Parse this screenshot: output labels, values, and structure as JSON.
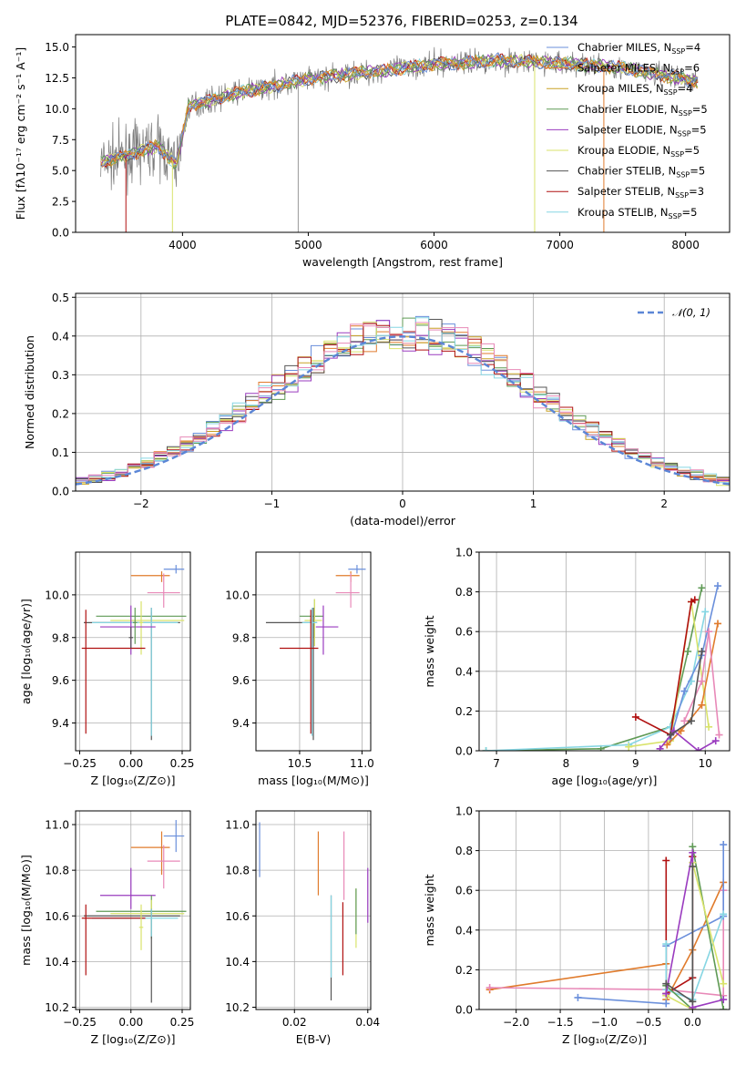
{
  "colors": {
    "Chabrier MILES": "#6a8fdb",
    "Salpeter MILES": "#e07b2c",
    "Kroupa MILES": "#c9a227",
    "Chabrier ELODIE": "#5f9a55",
    "Salpeter ELODIE": "#9a3bbf",
    "Kroupa ELODIE": "#d9e36b",
    "Chabrier STELIB": "#555555",
    "Salpeter STELIB": "#b01010",
    "Kroupa STELIB": "#86d6e3",
    "pink": "#e889b8",
    "gauss": "#5b86d6"
  },
  "chart_data": [
    {
      "id": "spectrum",
      "type": "line",
      "title": "PLATE=0842, MJD=52376, FIBERID=0253, z=0.134",
      "xlabel": "wavelength [Angstrom, rest frame]",
      "ylabel": "Flux [fλ10⁻¹⁷ erg cm⁻² s⁻¹ A⁻¹]",
      "xlim": [
        3150,
        8350
      ],
      "ylim": [
        0,
        16
      ],
      "xticks": [
        4000,
        5000,
        6000,
        7000,
        8000
      ],
      "yticks": [
        0.0,
        2.5,
        5.0,
        7.5,
        10.0,
        12.5,
        15.0
      ],
      "grid": false,
      "legend_loc": "right",
      "data_range": [
        3350,
        8100
      ],
      "continuum_anchors": [
        [
          3350,
          5.6
        ],
        [
          3600,
          6.4
        ],
        [
          3800,
          7.0
        ],
        [
          3950,
          5.5
        ],
        [
          4050,
          10.2
        ],
        [
          4400,
          11.2
        ],
        [
          5000,
          12.4
        ],
        [
          5600,
          13.1
        ],
        [
          6000,
          13.6
        ],
        [
          6500,
          13.9
        ],
        [
          7000,
          13.7
        ],
        [
          7500,
          13.3
        ],
        [
          8100,
          12.2
        ]
      ],
      "legend": [
        {
          "series": "Chabrier MILES",
          "label": "Chabrier MILES, N",
          "sub": "SSP",
          "suffix": "=4"
        },
        {
          "series": "Salpeter MILES",
          "label": "Salpeter MILES, N",
          "sub": "SSP",
          "suffix": "=6"
        },
        {
          "series": "Kroupa MILES",
          "label": "Kroupa MILES, N",
          "sub": "SSP",
          "suffix": "=4"
        },
        {
          "series": "Chabrier ELODIE",
          "label": "Chabrier ELODIE, N",
          "sub": "SSP",
          "suffix": "=5"
        },
        {
          "series": "Salpeter ELODIE",
          "label": "Salpeter ELODIE, N",
          "sub": "SSP",
          "suffix": "=5"
        },
        {
          "series": "Kroupa ELODIE",
          "label": "Kroupa ELODIE, N",
          "sub": "SSP",
          "suffix": "=5"
        },
        {
          "series": "Chabrier STELIB",
          "label": "Chabrier STELIB, N",
          "sub": "SSP",
          "suffix": "=5"
        },
        {
          "series": "Salpeter STELIB",
          "label": "Salpeter STELIB, N",
          "sub": "SSP",
          "suffix": "=3"
        },
        {
          "series": "Kroupa STELIB",
          "label": "Kroupa STELIB, N",
          "sub": "SSP",
          "suffix": "=5"
        }
      ]
    },
    {
      "id": "residuals",
      "type": "histogram",
      "xlabel": "(data-model)/error",
      "ylabel": "Normed distribution",
      "xlim": [
        -2.5,
        2.5
      ],
      "ylim": [
        0,
        0.51
      ],
      "xticks": [
        -2,
        -1,
        0,
        1,
        2
      ],
      "yticks": [
        0.0,
        0.1,
        0.2,
        0.3,
        0.4,
        0.5
      ],
      "grid": true,
      "legend_loc": "top-right",
      "legend_label": "𝒩(0, 1)",
      "bin_width": 0.1
    },
    {
      "id": "age_vs_Z",
      "type": "errorbar",
      "xlabel": "Z [log₁₀(Z/Z⊙)]",
      "ylabel": "age  [log₁₀(age/yr)]",
      "xlim": [
        -0.27,
        0.29
      ],
      "ylim": [
        9.27,
        10.2
      ],
      "xticks": [
        -0.25,
        0.0,
        0.25
      ],
      "yticks": [
        9.4,
        9.6,
        9.8,
        10.0
      ],
      "grid": true,
      "points": [
        {
          "c": "Chabrier MILES",
          "x": 0.22,
          "xe": [
            0.06,
            0.04
          ],
          "y": 10.12,
          "ye": [
            0.02,
            0.02
          ]
        },
        {
          "c": "Salpeter MILES",
          "x": 0.15,
          "xe": [
            0.15,
            0.04
          ],
          "y": 10.09,
          "ye": [
            0.03,
            0.02
          ]
        },
        {
          "c": "pink",
          "x": 0.16,
          "xe": [
            0.08,
            0.08
          ],
          "y": 10.01,
          "ye": [
            0.07,
            0.09
          ]
        },
        {
          "c": "Chabrier ELODIE",
          "x": 0.1,
          "xe": [
            0.27,
            0.17
          ],
          "y": 9.9,
          "ye": [
            0.02,
            0.02
          ]
        },
        {
          "c": "Kroupa ELODIE",
          "x": 0.1,
          "xe": [
            0.2,
            0.16
          ],
          "y": 9.88,
          "ye": [
            0.02,
            0.02
          ]
        },
        {
          "c": "Chabrier STELIB",
          "x": 0.1,
          "xe": [
            0.33,
            0.14
          ],
          "y": 9.87,
          "ye": [
            0.55,
            0.07
          ]
        },
        {
          "c": "Kroupa STELIB",
          "x": 0.1,
          "xe": [
            0.29,
            0.13
          ],
          "y": 9.87,
          "ye": [
            0.53,
            0.07
          ]
        },
        {
          "c": "Kroupa ELODIE",
          "x": 0.05,
          "xe": [
            0.01,
            0.01
          ],
          "y": 9.87,
          "ye": [
            0.15,
            0.1
          ]
        },
        {
          "c": "Salpeter ELODIE",
          "x": 0.0,
          "xe": [
            0.15,
            0.12
          ],
          "y": 9.85,
          "ye": [
            0.13,
            0.1
          ]
        },
        {
          "c": "Chabrier ELODIE",
          "x": 0.02,
          "xe": [
            0.01,
            0.01
          ],
          "y": 9.87,
          "ye": [
            0.1,
            0.07
          ]
        },
        {
          "c": "Salpeter STELIB",
          "x": -0.22,
          "xe": [
            0.02,
            0.29
          ],
          "y": 9.75,
          "ye": [
            0.4,
            0.18
          ]
        },
        {
          "c": "Chabrier STELIB",
          "x": 0.0,
          "xe": [
            0.01,
            0.01
          ],
          "y": 9.8,
          "ye": [
            0.05,
            0.05
          ]
        }
      ]
    },
    {
      "id": "age_vs_mass",
      "type": "errorbar",
      "xlabel": "mass [log₁₀(M/M⊙)]",
      "ylabel": "",
      "xlim": [
        10.15,
        11.07
      ],
      "ylim": [
        9.27,
        10.2
      ],
      "xticks": [
        10.5,
        11.0
      ],
      "yticks": [
        9.4,
        9.6,
        9.8,
        10.0
      ],
      "grid": true,
      "points": [
        {
          "c": "Chabrier MILES",
          "x": 10.96,
          "xe": [
            0.07,
            0.07
          ],
          "y": 10.12,
          "ye": [
            0.02,
            0.02
          ]
        },
        {
          "c": "Salpeter MILES",
          "x": 10.91,
          "xe": [
            0.12,
            0.07
          ],
          "y": 10.09,
          "ye": [
            0.03,
            0.02
          ]
        },
        {
          "c": "pink",
          "x": 10.91,
          "xe": [
            0.12,
            0.07
          ],
          "y": 10.01,
          "ye": [
            0.07,
            0.09
          ]
        },
        {
          "c": "Chabrier ELODIE",
          "x": 10.62,
          "xe": [
            0.12,
            0.07
          ],
          "y": 9.9,
          "ye": [
            0.1,
            0.08
          ]
        },
        {
          "c": "Kroupa ELODIE",
          "x": 10.62,
          "xe": [
            0.08,
            0.06
          ],
          "y": 9.88,
          "ye": [
            0.12,
            0.1
          ]
        },
        {
          "c": "Chabrier STELIB",
          "x": 10.61,
          "xe": [
            0.38,
            0.03
          ],
          "y": 9.87,
          "ye": [
            0.55,
            0.07
          ]
        },
        {
          "c": "Kroupa STELIB",
          "x": 10.6,
          "xe": [
            0.08,
            0.04
          ],
          "y": 9.87,
          "ye": [
            0.53,
            0.07
          ]
        },
        {
          "c": "Salpeter ELODIE",
          "x": 10.69,
          "xe": [
            0.06,
            0.12
          ],
          "y": 9.85,
          "ye": [
            0.13,
            0.1
          ]
        },
        {
          "c": "Salpeter STELIB",
          "x": 10.59,
          "xe": [
            0.25,
            0.06
          ],
          "y": 9.75,
          "ye": [
            0.4,
            0.18
          ]
        }
      ]
    },
    {
      "id": "weight_vs_age",
      "type": "line",
      "xlabel": "age  [log₁₀(age/yr)]",
      "ylabel": "mass weight",
      "xlim": [
        6.75,
        10.35
      ],
      "ylim": [
        0,
        1.0
      ],
      "xticks": [
        7,
        8,
        9,
        10
      ],
      "yticks": [
        0.0,
        0.2,
        0.4,
        0.6,
        0.8,
        1.0
      ],
      "grid": true,
      "series": [
        {
          "c": "Chabrier ELODIE",
          "x": [
            6.85,
            8.5,
            9.5,
            9.75,
            9.95
          ],
          "y": [
            0.0,
            0.01,
            0.12,
            0.5,
            0.82
          ]
        },
        {
          "c": "Kroupa STELIB",
          "x": [
            6.85,
            8.9,
            9.5,
            9.8,
            10.0
          ],
          "y": [
            0.0,
            0.03,
            0.12,
            0.35,
            0.7
          ]
        },
        {
          "c": "Kroupa ELODIE",
          "x": [
            8.9,
            9.5,
            9.8,
            10.05
          ],
          "y": [
            0.02,
            0.05,
            0.75,
            0.12
          ]
        },
        {
          "c": "Chabrier MILES",
          "x": [
            9.5,
            9.7,
            9.95,
            10.18
          ],
          "y": [
            0.06,
            0.3,
            0.48,
            0.83
          ]
        },
        {
          "c": "Salpeter MILES",
          "x": [
            9.45,
            9.65,
            9.95,
            10.18
          ],
          "y": [
            0.03,
            0.1,
            0.23,
            0.64
          ]
        },
        {
          "c": "Salpeter STELIB",
          "x": [
            9.0,
            9.5,
            9.8,
            9.85
          ],
          "y": [
            0.17,
            0.08,
            0.75,
            0.76
          ]
        },
        {
          "c": "Salpeter ELODIE",
          "x": [
            9.35,
            9.55,
            9.9,
            10.15
          ],
          "y": [
            0.01,
            0.1,
            0.0,
            0.05
          ]
        },
        {
          "c": "pink",
          "x": [
            9.7,
            9.95,
            10.05,
            10.2
          ],
          "y": [
            0.15,
            0.35,
            0.6,
            0.08
          ]
        },
        {
          "c": "Chabrier STELIB",
          "x": [
            9.5,
            9.8,
            9.95
          ],
          "y": [
            0.08,
            0.15,
            0.5
          ]
        }
      ]
    },
    {
      "id": "mass_vs_Z",
      "type": "errorbar",
      "xlabel": "Z [log₁₀(Z/Z⊙)]",
      "ylabel": "mass [log₁₀(M/M⊙)]",
      "xlim": [
        -0.27,
        0.29
      ],
      "ylim": [
        10.19,
        11.06
      ],
      "xticks": [
        -0.25,
        0.0,
        0.25
      ],
      "yticks": [
        10.2,
        10.4,
        10.6,
        10.8,
        11.0
      ],
      "grid": true,
      "points": [
        {
          "c": "Chabrier MILES",
          "x": 0.22,
          "xe": [
            0.06,
            0.04
          ],
          "y": 10.95,
          "ye": [
            0.07,
            0.07
          ]
        },
        {
          "c": "Salpeter MILES",
          "x": 0.15,
          "xe": [
            0.15,
            0.04
          ],
          "y": 10.9,
          "ye": [
            0.12,
            0.07
          ]
        },
        {
          "c": "pink",
          "x": 0.16,
          "xe": [
            0.08,
            0.08
          ],
          "y": 10.84,
          "ye": [
            0.12,
            0.07
          ]
        },
        {
          "c": "Salpeter ELODIE",
          "x": 0.0,
          "xe": [
            0.15,
            0.12
          ],
          "y": 10.69,
          "ye": [
            0.06,
            0.12
          ]
        },
        {
          "c": "Chabrier ELODIE",
          "x": 0.1,
          "xe": [
            0.27,
            0.17
          ],
          "y": 10.62,
          "ye": [
            0.12,
            0.07
          ]
        },
        {
          "c": "Kroupa ELODIE",
          "x": 0.1,
          "xe": [
            0.2,
            0.16
          ],
          "y": 10.61,
          "ye": [
            0.08,
            0.06
          ]
        },
        {
          "c": "Chabrier STELIB",
          "x": 0.1,
          "xe": [
            0.33,
            0.14
          ],
          "y": 10.6,
          "ye": [
            0.38,
            0.03
          ]
        },
        {
          "c": "Kroupa STELIB",
          "x": 0.1,
          "xe": [
            0.29,
            0.13
          ],
          "y": 10.59,
          "ye": [
            0.08,
            0.04
          ]
        },
        {
          "c": "Salpeter STELIB",
          "x": -0.22,
          "xe": [
            0.02,
            0.29
          ],
          "y": 10.59,
          "ye": [
            0.25,
            0.06
          ]
        },
        {
          "c": "Kroupa ELODIE",
          "x": 0.05,
          "xe": [
            0.01,
            0.01
          ],
          "y": 10.55,
          "ye": [
            0.1,
            0.1
          ]
        }
      ]
    },
    {
      "id": "mass_vs_EBV",
      "type": "errorbar",
      "xlabel": "E(B-V)",
      "ylabel": "",
      "xlim": [
        0.0095,
        0.0408
      ],
      "ylim": [
        10.19,
        11.06
      ],
      "xticks": [
        0.02,
        0.04
      ],
      "yticks": [
        10.2,
        10.4,
        10.6,
        10.8,
        11.0
      ],
      "grid": true,
      "points": [
        {
          "c": "Chabrier MILES",
          "x": 0.0105,
          "y": 10.89,
          "ye": [
            0.12,
            0.12
          ]
        },
        {
          "c": "Salpeter MILES",
          "x": 0.0265,
          "y": 10.83,
          "ye": [
            0.14,
            0.14
          ]
        },
        {
          "c": "pink",
          "x": 0.0335,
          "y": 10.82,
          "ye": [
            0.15,
            0.15
          ]
        },
        {
          "c": "Salpeter ELODIE",
          "x": 0.04,
          "y": 10.69,
          "ye": [
            0.12,
            0.12
          ]
        },
        {
          "c": "Chabrier STELIB",
          "x": 0.03,
          "y": 10.46,
          "ye": [
            0.23,
            0.23
          ]
        },
        {
          "c": "Kroupa STELIB",
          "x": 0.03,
          "y": 10.51,
          "ye": [
            0.18,
            0.18
          ]
        },
        {
          "c": "Salpeter STELIB",
          "x": 0.0332,
          "y": 10.5,
          "ye": [
            0.16,
            0.16
          ]
        },
        {
          "c": "Kroupa ELODIE",
          "x": 0.0368,
          "y": 10.59,
          "ye": [
            0.13,
            0.13
          ]
        },
        {
          "c": "Chabrier ELODIE",
          "x": 0.0368,
          "y": 10.62,
          "ye": [
            0.1,
            0.1
          ]
        }
      ]
    },
    {
      "id": "weight_vs_Z",
      "type": "line",
      "xlabel": "Z [log₁₀(Z/Z⊙)]",
      "ylabel": "mass weight",
      "xlim": [
        -2.42,
        0.42
      ],
      "ylim": [
        0,
        1.0
      ],
      "xticks": [
        -2.0,
        -1.5,
        -1.0,
        -0.5,
        0.0
      ],
      "yticks": [
        0.0,
        0.2,
        0.4,
        0.6,
        0.8,
        1.0
      ],
      "grid": true,
      "series": [
        {
          "c": "Salpeter MILES",
          "x": [
            -2.3,
            -0.3,
            -0.3,
            0.0,
            0.35
          ],
          "y": [
            0.1,
            0.23,
            0.05,
            0.3,
            0.64
          ]
        },
        {
          "c": "pink",
          "x": [
            -2.3,
            -0.3,
            0.35,
            0.35
          ],
          "y": [
            0.11,
            0.1,
            0.07,
            0.6
          ]
        },
        {
          "c": "Chabrier MILES",
          "x": [
            -1.3,
            -0.3,
            -0.3,
            0.35,
            0.35
          ],
          "y": [
            0.06,
            0.03,
            0.32,
            0.47,
            0.83
          ]
        },
        {
          "c": "Salpeter STELIB",
          "x": [
            -0.3,
            -0.3,
            0.0,
            0.0
          ],
          "y": [
            0.75,
            0.08,
            0.16,
            0.77
          ]
        },
        {
          "c": "Kroupa STELIB",
          "x": [
            -0.3,
            -0.3,
            0.0,
            0.35
          ],
          "y": [
            0.33,
            0.1,
            0.05,
            0.48
          ]
        },
        {
          "c": "Chabrier ELODIE",
          "x": [
            -0.3,
            0.0,
            0.0,
            0.35
          ],
          "y": [
            0.12,
            0.0,
            0.82,
            0.0
          ]
        },
        {
          "c": "Kroupa ELODIE",
          "x": [
            -0.3,
            0.0,
            0.0,
            0.35
          ],
          "y": [
            0.07,
            0.0,
            0.74,
            0.13
          ]
        },
        {
          "c": "Salpeter ELODIE",
          "x": [
            -0.3,
            0.0,
            0.0,
            0.35
          ],
          "y": [
            0.08,
            0.79,
            0.01,
            0.05
          ]
        },
        {
          "c": "Chabrier STELIB",
          "x": [
            -0.3,
            0.0,
            0.0
          ],
          "y": [
            0.13,
            0.04,
            0.72
          ]
        }
      ]
    }
  ]
}
